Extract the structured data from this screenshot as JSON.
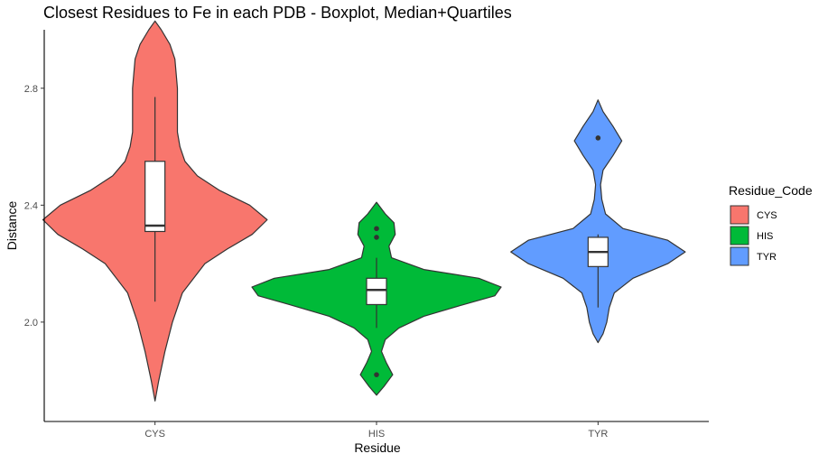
{
  "chart_data": {
    "type": "violin",
    "title": "Closest Residues to Fe in each PDB - Boxplot, Median+Quartiles",
    "xlabel": "Residue",
    "ylabel": "Distance",
    "categories": [
      "CYS",
      "HIS",
      "TYR"
    ],
    "ylim": [
      1.66,
      3.0
    ],
    "yticks": [
      2.0,
      2.4,
      2.8
    ],
    "ytick_labels": [
      "2.0",
      "2.4",
      "2.8"
    ],
    "grid": false,
    "legend": {
      "title": "Residue_Code",
      "position": "right",
      "entries": [
        "CYS",
        "HIS",
        "TYR"
      ]
    },
    "series": [
      {
        "name": "CYS",
        "color": "#F8766D",
        "box": {
          "q1": 2.31,
          "median": 2.33,
          "q3": 2.55,
          "whisker_low": 2.07,
          "whisker_high": 2.77
        },
        "outliers": [],
        "density": [
          [
            1.73,
            0.0
          ],
          [
            1.8,
            0.03
          ],
          [
            1.9,
            0.08
          ],
          [
            2.0,
            0.14
          ],
          [
            2.1,
            0.22
          ],
          [
            2.2,
            0.4
          ],
          [
            2.25,
            0.58
          ],
          [
            2.3,
            0.78
          ],
          [
            2.35,
            0.9
          ],
          [
            2.4,
            0.76
          ],
          [
            2.45,
            0.52
          ],
          [
            2.5,
            0.34
          ],
          [
            2.55,
            0.24
          ],
          [
            2.6,
            0.2
          ],
          [
            2.65,
            0.18
          ],
          [
            2.7,
            0.18
          ],
          [
            2.75,
            0.18
          ],
          [
            2.8,
            0.18
          ],
          [
            2.85,
            0.17
          ],
          [
            2.9,
            0.16
          ],
          [
            2.95,
            0.12
          ],
          [
            3.0,
            0.05
          ],
          [
            3.03,
            0.0
          ]
        ]
      },
      {
        "name": "HIS",
        "color": "#00BA38",
        "box": {
          "q1": 2.06,
          "median": 2.11,
          "q3": 2.15,
          "whisker_low": 1.98,
          "whisker_high": 2.22
        },
        "outliers": [
          2.32,
          2.29,
          1.82
        ],
        "density": [
          [
            1.75,
            0.0
          ],
          [
            1.78,
            0.06
          ],
          [
            1.82,
            0.13
          ],
          [
            1.86,
            0.08
          ],
          [
            1.9,
            0.04
          ],
          [
            1.94,
            0.07
          ],
          [
            1.98,
            0.18
          ],
          [
            2.02,
            0.38
          ],
          [
            2.06,
            0.7
          ],
          [
            2.09,
            0.95
          ],
          [
            2.12,
            1.0
          ],
          [
            2.15,
            0.82
          ],
          [
            2.18,
            0.38
          ],
          [
            2.22,
            0.12
          ],
          [
            2.26,
            0.1
          ],
          [
            2.3,
            0.15
          ],
          [
            2.34,
            0.14
          ],
          [
            2.37,
            0.07
          ],
          [
            2.41,
            0.0
          ]
        ]
      },
      {
        "name": "TYR",
        "color": "#619CFF",
        "box": {
          "q1": 2.19,
          "median": 2.24,
          "q3": 2.29,
          "whisker_low": 2.05,
          "whisker_high": 2.3
        },
        "outliers": [
          2.63
        ],
        "density": [
          [
            1.93,
            0.0
          ],
          [
            1.96,
            0.04
          ],
          [
            2.0,
            0.07
          ],
          [
            2.05,
            0.09
          ],
          [
            2.1,
            0.13
          ],
          [
            2.15,
            0.28
          ],
          [
            2.2,
            0.56
          ],
          [
            2.24,
            0.7
          ],
          [
            2.28,
            0.56
          ],
          [
            2.32,
            0.2
          ],
          [
            2.37,
            0.06
          ],
          [
            2.42,
            0.03
          ],
          [
            2.47,
            0.02
          ],
          [
            2.52,
            0.04
          ],
          [
            2.57,
            0.12
          ],
          [
            2.62,
            0.19
          ],
          [
            2.67,
            0.12
          ],
          [
            2.72,
            0.04
          ],
          [
            2.76,
            0.0
          ]
        ]
      }
    ]
  }
}
